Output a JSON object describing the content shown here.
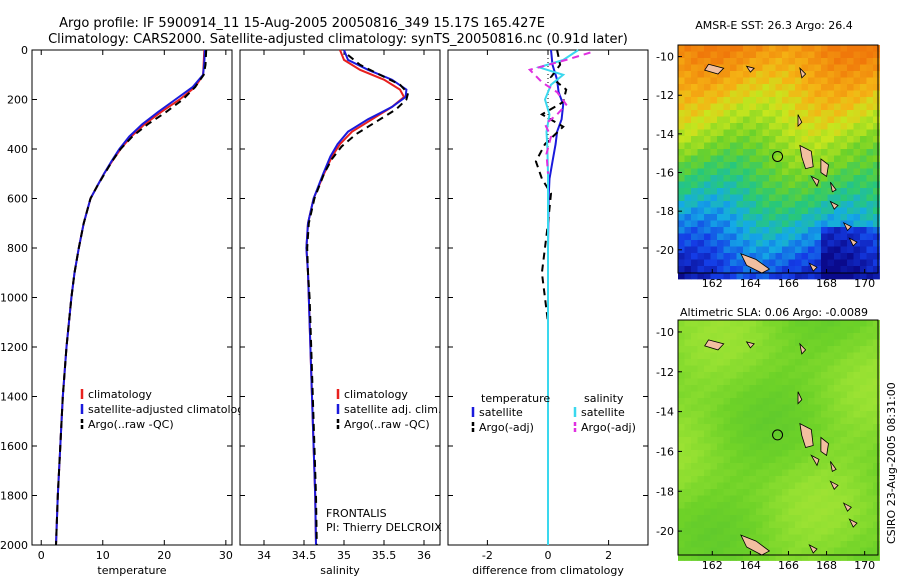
{
  "title": {
    "line1": "Argo profile: IF 5900914_11 15-Aug-2005 20050816_349 15.17S 165.427E",
    "line2": "Climatology: CARS2000. Satellite-adjusted climatology: synTS_20050816.nc (0.91d later)"
  },
  "colors": {
    "climatology": "#e8201e",
    "satellite": "#1a1adc",
    "argo": "#000000",
    "sal_satellite": "#3ad8ee",
    "sal_argo": "#e030e0"
  },
  "credit": {
    "org": "FRONTALIS",
    "pi": "PI: Thierry DELCROIX"
  },
  "watermark": "CSIRO 23-Aug-2005 08:31:00",
  "chart_data": [
    {
      "type": "line",
      "xlabel": "temperature",
      "ylabel": "",
      "xlim": [
        -1.5,
        31
      ],
      "ylim": [
        2000,
        0
      ],
      "y_reversed": true,
      "xticks": [
        0,
        10,
        20,
        30
      ],
      "yticks": [
        0,
        200,
        400,
        600,
        800,
        1000,
        1200,
        1400,
        1600,
        1800,
        2000
      ],
      "legend": [
        "climatology",
        "satellite-adjusted climatology",
        "Argo(..raw -QC)"
      ],
      "series": [
        {
          "name": "climatology",
          "color": "climatology",
          "style": "solid",
          "points": [
            [
              26.5,
              0
            ],
            [
              26.4,
              50
            ],
            [
              26.3,
              100
            ],
            [
              25,
              150
            ],
            [
              22.5,
              200
            ],
            [
              19.5,
              250
            ],
            [
              16.8,
              300
            ],
            [
              14.6,
              350
            ],
            [
              12.9,
              400
            ],
            [
              11.5,
              450
            ],
            [
              10.2,
              500
            ],
            [
              9.1,
              550
            ],
            [
              8,
              600
            ],
            [
              6.9,
              700
            ],
            [
              6.1,
              800
            ],
            [
              5.4,
              900
            ],
            [
              4.9,
              1000
            ],
            [
              4.1,
              1200
            ],
            [
              3.5,
              1400
            ],
            [
              3.1,
              1600
            ],
            [
              2.7,
              1800
            ],
            [
              2.4,
              2000
            ]
          ]
        },
        {
          "name": "satellite-adjusted climatology",
          "color": "satellite",
          "style": "solid",
          "points": [
            [
              26.6,
              0
            ],
            [
              26.5,
              50
            ],
            [
              26.3,
              100
            ],
            [
              24.6,
              150
            ],
            [
              21.8,
              200
            ],
            [
              19,
              250
            ],
            [
              16.4,
              300
            ],
            [
              14.3,
              350
            ],
            [
              12.7,
              400
            ],
            [
              11.4,
              450
            ],
            [
              10.2,
              500
            ],
            [
              9.1,
              550
            ],
            [
              8,
              600
            ],
            [
              6.9,
              700
            ],
            [
              6.1,
              800
            ],
            [
              5.4,
              900
            ],
            [
              4.9,
              1000
            ],
            [
              4.1,
              1200
            ],
            [
              3.5,
              1400
            ],
            [
              3.1,
              1600
            ],
            [
              2.7,
              1800
            ],
            [
              2.4,
              2000
            ]
          ]
        },
        {
          "name": "Argo(..raw -QC)",
          "color": "argo",
          "style": "dashed",
          "points": [
            [
              26.8,
              0
            ],
            [
              26.7,
              60
            ],
            [
              26.4,
              100
            ],
            [
              25,
              150
            ],
            [
              23,
              200
            ],
            [
              20.3,
              250
            ],
            [
              17.3,
              300
            ],
            [
              14.8,
              350
            ],
            [
              12.9,
              400
            ],
            [
              11.5,
              450
            ],
            [
              10.3,
              500
            ],
            [
              9.1,
              550
            ],
            [
              8,
              600
            ],
            [
              6.9,
              700
            ],
            [
              6.1,
              800
            ],
            [
              5.4,
              900
            ],
            [
              4.9,
              1000
            ],
            [
              4.1,
              1200
            ],
            [
              3.5,
              1400
            ],
            [
              3.1,
              1600
            ],
            [
              2.7,
              1800
            ],
            [
              2.4,
              2000
            ]
          ]
        }
      ]
    },
    {
      "type": "line",
      "xlabel": "salinity",
      "ylabel": "",
      "xlim": [
        33.7,
        36.2
      ],
      "ylim": [
        2000,
        0
      ],
      "y_reversed": true,
      "xticks": [
        34,
        34.5,
        35,
        35.5,
        36
      ],
      "legend": [
        "climatology",
        "satellite adj. clim.",
        "Argo(..raw -QC)"
      ],
      "series": [
        {
          "name": "climatology",
          "color": "climatology",
          "style": "solid",
          "points": [
            [
              34.95,
              0
            ],
            [
              35,
              40
            ],
            [
              35.2,
              80
            ],
            [
              35.5,
              120
            ],
            [
              35.7,
              160
            ],
            [
              35.75,
              190
            ],
            [
              35.6,
              230
            ],
            [
              35.35,
              280
            ],
            [
              35.1,
              330
            ],
            [
              34.95,
              380
            ],
            [
              34.85,
              430
            ],
            [
              34.75,
              500
            ],
            [
              34.62,
              600
            ],
            [
              34.55,
              700
            ],
            [
              34.53,
              800
            ],
            [
              34.55,
              900
            ],
            [
              34.56,
              1000
            ],
            [
              34.58,
              1200
            ],
            [
              34.6,
              1400
            ],
            [
              34.62,
              1600
            ],
            [
              34.64,
              1800
            ],
            [
              34.65,
              2000
            ]
          ]
        },
        {
          "name": "satellite adj. clim.",
          "color": "satellite",
          "style": "solid",
          "points": [
            [
              35,
              0
            ],
            [
              35.05,
              40
            ],
            [
              35.3,
              80
            ],
            [
              35.6,
              120
            ],
            [
              35.78,
              160
            ],
            [
              35.77,
              190
            ],
            [
              35.6,
              230
            ],
            [
              35.3,
              280
            ],
            [
              35.05,
              330
            ],
            [
              34.92,
              380
            ],
            [
              34.83,
              430
            ],
            [
              34.74,
              500
            ],
            [
              34.62,
              600
            ],
            [
              34.55,
              700
            ],
            [
              34.53,
              800
            ],
            [
              34.55,
              900
            ],
            [
              34.56,
              1000
            ],
            [
              34.58,
              1200
            ],
            [
              34.6,
              1400
            ],
            [
              34.62,
              1600
            ],
            [
              34.64,
              1800
            ],
            [
              34.65,
              2000
            ]
          ]
        },
        {
          "name": "Argo(..raw -QC)",
          "color": "argo",
          "style": "dashed",
          "points": [
            [
              35.05,
              20
            ],
            [
              35.2,
              60
            ],
            [
              35.45,
              100
            ],
            [
              35.7,
              140
            ],
            [
              35.8,
              175
            ],
            [
              35.78,
              200
            ],
            [
              35.65,
              240
            ],
            [
              35.4,
              290
            ],
            [
              35.15,
              340
            ],
            [
              34.97,
              390
            ],
            [
              34.85,
              440
            ],
            [
              34.75,
              500
            ],
            [
              34.63,
              600
            ],
            [
              34.56,
              700
            ],
            [
              34.54,
              800
            ],
            [
              34.55,
              900
            ],
            [
              34.57,
              1000
            ],
            [
              34.59,
              1200
            ],
            [
              34.61,
              1400
            ],
            [
              34.63,
              1600
            ],
            [
              34.65,
              1800
            ],
            [
              34.66,
              2000
            ]
          ]
        }
      ]
    },
    {
      "type": "line",
      "xlabel": "difference from climatology",
      "ylabel": "",
      "xlim": [
        -3.3,
        3.3
      ],
      "ylim": [
        2000,
        0
      ],
      "y_reversed": true,
      "xticks": [
        -2,
        0,
        2
      ],
      "legend": [
        "temperature",
        "satellite",
        "Argo(-adj)",
        "salinity",
        "satellite",
        "Argo(-adj)"
      ],
      "series": [
        {
          "name": "temperature satellite",
          "color": "satellite",
          "style": "solid",
          "points": [
            [
              0.1,
              0
            ],
            [
              0.15,
              60
            ],
            [
              0.3,
              120
            ],
            [
              0.35,
              170
            ],
            [
              0.5,
              220
            ],
            [
              0.45,
              280
            ],
            [
              0.3,
              330
            ],
            [
              0.25,
              380
            ],
            [
              0.15,
              450
            ],
            [
              0.05,
              520
            ],
            [
              0.02,
              600
            ],
            [
              0,
              800
            ],
            [
              0,
              1200
            ],
            [
              0,
              1600
            ],
            [
              0,
              2000
            ]
          ]
        },
        {
          "name": "temperature Argo(-adj)",
          "color": "argo",
          "style": "dashed",
          "points": [
            [
              0.3,
              0
            ],
            [
              0.4,
              60
            ],
            [
              0.1,
              110
            ],
            [
              0.6,
              160
            ],
            [
              0.5,
              210
            ],
            [
              -0.2,
              260
            ],
            [
              0.5,
              310
            ],
            [
              -0.1,
              380
            ],
            [
              -0.4,
              450
            ],
            [
              -0.2,
              520
            ],
            [
              0.1,
              580
            ],
            [
              0,
              700
            ],
            [
              -0.2,
              900
            ],
            [
              0,
              1100
            ],
            [
              0,
              1500
            ],
            [
              0,
              2000
            ]
          ]
        },
        {
          "name": "salinity satellite",
          "color": "sal_satellite",
          "style": "solid",
          "points": [
            [
              1.0,
              0
            ],
            [
              0.5,
              40
            ],
            [
              -0.3,
              70
            ],
            [
              0.5,
              100
            ],
            [
              0.1,
              140
            ],
            [
              -0.1,
              200
            ],
            [
              0.05,
              260
            ],
            [
              -0.05,
              330
            ],
            [
              -0.02,
              400
            ],
            [
              0,
              500
            ],
            [
              0,
              700
            ],
            [
              0,
              1000
            ],
            [
              0,
              1400
            ],
            [
              0,
              2000
            ]
          ]
        },
        {
          "name": "salinity Argo(-adj)",
          "color": "sal_argo",
          "style": "dashed",
          "points": [
            [
              1.4,
              10
            ],
            [
              0.6,
              40
            ],
            [
              -0.6,
              80
            ],
            [
              -0.2,
              130
            ],
            [
              0.3,
              170
            ],
            [
              0.6,
              220
            ],
            [
              0.3,
              260
            ],
            [
              -0.1,
              300
            ],
            [
              0.1,
              350
            ],
            [
              -0.05,
              420
            ],
            [
              0,
              500
            ]
          ]
        }
      ]
    }
  ],
  "maps": [
    {
      "title": "AMSR-E SST: 26.3 Argo: 26.4",
      "kind": "sst",
      "xticks": [
        162,
        164,
        166,
        168,
        170
      ],
      "yticks": [
        -10,
        -12,
        -14,
        -16,
        -18,
        -20
      ],
      "lon_range": [
        160.2,
        170.7
      ],
      "lat_range": [
        -21.2,
        -9.4
      ],
      "argo_marker": [
        165.427,
        -15.17
      ]
    },
    {
      "title": "Altimetric SLA: 0.06 Argo: -0.0089",
      "kind": "sla",
      "xticks": [
        162,
        164,
        166,
        168,
        170
      ],
      "yticks": [
        -10,
        -12,
        -14,
        -16,
        -18,
        -20
      ],
      "lon_range": [
        160.2,
        170.7
      ],
      "lat_range": [
        -21.2,
        -9.4
      ],
      "argo_marker": [
        165.427,
        -15.17
      ]
    }
  ]
}
